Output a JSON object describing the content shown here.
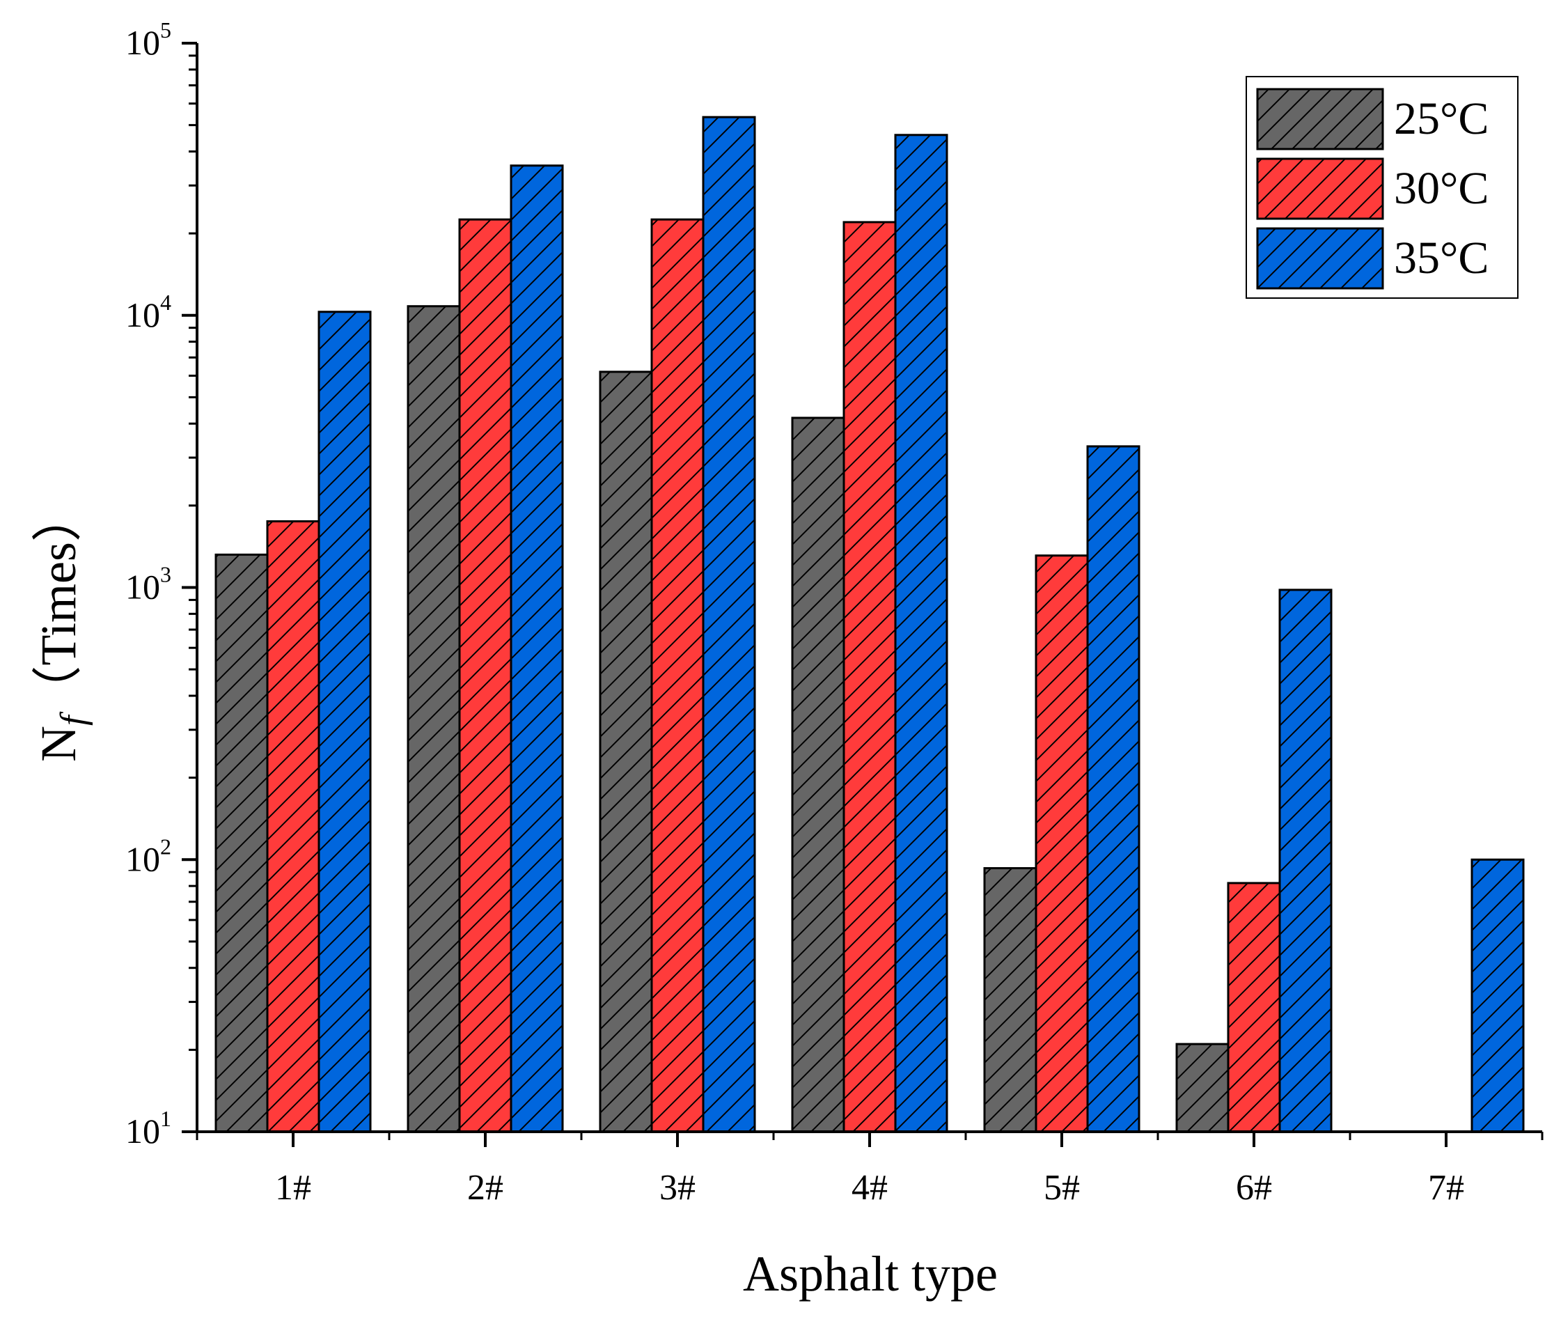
{
  "chart_data": {
    "type": "bar",
    "title": "",
    "xlabel": "Asphalt type",
    "ylabel": "Nf（Times）",
    "ylabel_main": "N",
    "ylabel_sub": "f",
    "ylabel_rest": "（Times）",
    "yscale": "log",
    "ylim": [
      10,
      100000
    ],
    "y_ticks": [
      {
        "value": 10,
        "base": "10",
        "exp": "1"
      },
      {
        "value": 100,
        "base": "10",
        "exp": "2"
      },
      {
        "value": 1000,
        "base": "10",
        "exp": "3"
      },
      {
        "value": 10000,
        "base": "10",
        "exp": "4"
      },
      {
        "value": 100000,
        "base": "10",
        "exp": "5"
      }
    ],
    "legend_position": "top-right",
    "categories": [
      "1#",
      "2#",
      "3#",
      "4#",
      "5#",
      "6#",
      "7#"
    ],
    "series": [
      {
        "name": "25°C",
        "color": "#666666",
        "values": [
          1320,
          10800,
          6200,
          4200,
          93,
          21,
          null
        ]
      },
      {
        "name": "30°C",
        "color": "#ff3b3b",
        "values": [
          1750,
          22500,
          22500,
          22000,
          1310,
          82,
          null
        ]
      },
      {
        "name": "35°C",
        "color": "#0066dd",
        "values": [
          10300,
          35500,
          53500,
          46000,
          3300,
          980,
          100
        ]
      }
    ]
  }
}
